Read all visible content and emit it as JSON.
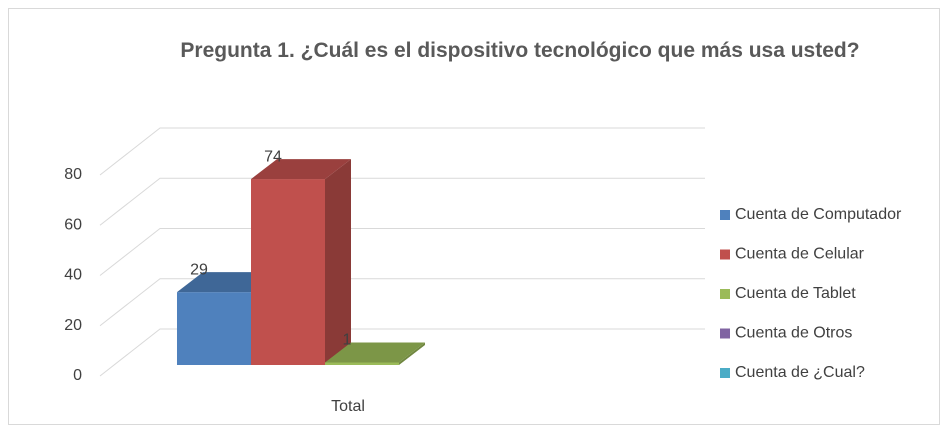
{
  "chart_data": {
    "type": "bar3d",
    "title": "Pregunta 1. ¿Cuál es el dispositivo tecnológico que más usa usted?",
    "categories": [
      "Total"
    ],
    "series": [
      {
        "name": "Cuenta de Computador",
        "color": "#4f81bd",
        "values": [
          29
        ]
      },
      {
        "name": "Cuenta de Celular",
        "color": "#c0504d",
        "values": [
          74
        ]
      },
      {
        "name": "Cuenta de Tablet",
        "color": "#9bbb59",
        "values": [
          1
        ]
      },
      {
        "name": "Cuenta de Otros",
        "color": "#8064a2",
        "values": [
          null
        ]
      },
      {
        "name": "Cuenta de ¿Cual?",
        "color": "#4bacc6",
        "values": [
          null
        ]
      }
    ],
    "ylim": [
      0,
      80
    ],
    "yticks": [
      0,
      20,
      40,
      60,
      80
    ],
    "grid": true,
    "legend": "right"
  }
}
